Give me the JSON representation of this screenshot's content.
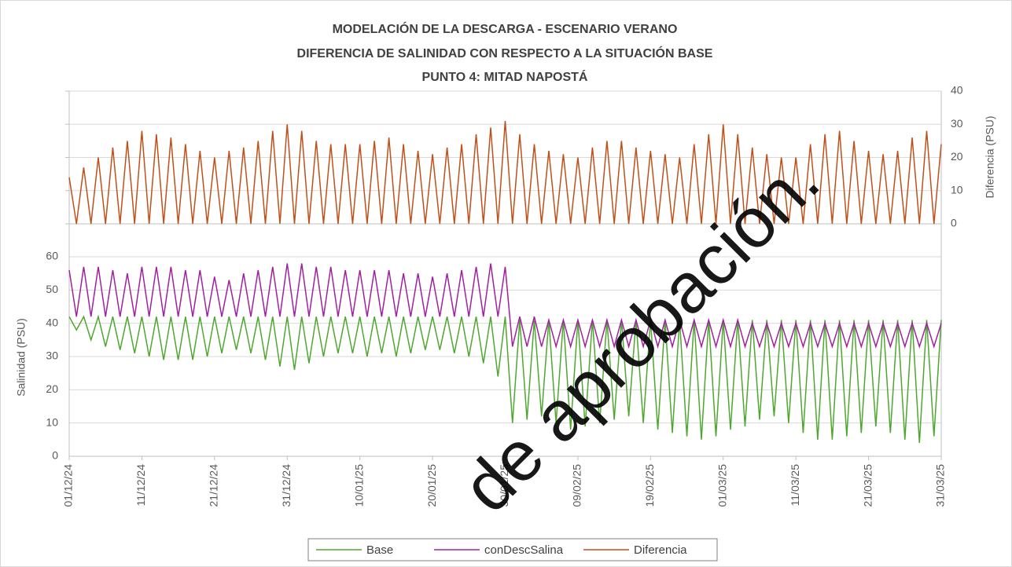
{
  "chart_data": {
    "type": "line",
    "title": [
      "MODELACIÓN DE LA DESCARGA - ESCENARIO VERANO",
      "DIFERENCIA DE SALINIDAD CON RESPECTO A LA SITUACIÓN BASE",
      "PUNTO 4: MITAD NAPOSTÁ"
    ],
    "ylabel": "Salinidad (PSU)",
    "y2label": "Diferencia (PSU)",
    "watermark": "de aprobación.",
    "x": [
      0,
      1,
      2,
      3,
      4,
      5,
      6,
      7,
      8,
      9,
      10,
      11,
      12,
      13,
      14,
      15,
      16,
      17,
      18,
      19,
      20,
      21,
      22,
      23,
      24,
      25,
      26,
      27,
      28,
      29,
      30,
      31,
      32,
      33,
      34,
      35,
      36,
      37,
      38,
      39,
      40,
      41,
      42,
      43,
      44,
      45,
      46,
      47,
      48,
      49,
      50,
      51,
      52,
      53,
      54,
      55,
      56,
      57,
      58,
      59,
      60,
      61,
      62,
      63,
      64,
      65,
      66,
      67,
      68,
      69,
      70,
      71,
      72,
      73,
      74,
      75,
      76,
      77,
      78,
      79,
      80,
      81,
      82,
      83,
      84,
      85,
      86,
      87,
      88,
      89,
      90,
      91,
      92,
      93,
      94,
      95,
      96,
      97,
      98,
      99,
      100,
      101,
      102,
      103,
      104,
      105,
      106,
      107,
      108,
      109,
      110,
      111,
      112,
      113,
      114,
      115,
      116,
      117,
      118,
      119,
      120
    ],
    "xlim": [
      0,
      120
    ],
    "xticks": [
      {
        "value": 0,
        "label": "01/12/24"
      },
      {
        "value": 10,
        "label": "11/12/24"
      },
      {
        "value": 20,
        "label": "21/12/24"
      },
      {
        "value": 30,
        "label": "31/12/24"
      },
      {
        "value": 40,
        "label": "10/01/25"
      },
      {
        "value": 50,
        "label": "20/01/25"
      },
      {
        "value": 60,
        "label": "30/01/25"
      },
      {
        "value": 70,
        "label": "09/02/25"
      },
      {
        "value": 80,
        "label": "19/02/25"
      },
      {
        "value": 90,
        "label": "01/03/25"
      },
      {
        "value": 100,
        "label": "11/03/25"
      },
      {
        "value": 110,
        "label": "21/03/25"
      },
      {
        "value": 120,
        "label": "31/03/25"
      }
    ],
    "ylim": [
      0,
      60
    ],
    "yticks": [
      0,
      10,
      20,
      30,
      40,
      50,
      60
    ],
    "y2lim": [
      0,
      40
    ],
    "y2ticks": [
      0,
      10,
      20,
      30,
      40
    ],
    "grid": true,
    "legend": "bottom",
    "series": [
      {
        "name": "Base",
        "color": "#4ea72e",
        "values": [
          42,
          38,
          42,
          35,
          42,
          33,
          42,
          32,
          42,
          31,
          42,
          30,
          42,
          29,
          42,
          29,
          42,
          29,
          42,
          30,
          42,
          31,
          42,
          32,
          42,
          31,
          42,
          29,
          42,
          27,
          42,
          26,
          42,
          28,
          42,
          30,
          42,
          31,
          42,
          31,
          42,
          30,
          42,
          31,
          42,
          30,
          42,
          31,
          42,
          32,
          42,
          32,
          42,
          31,
          42,
          30,
          42,
          28,
          42,
          24,
          42,
          10,
          41,
          11,
          41,
          12,
          41,
          10,
          41,
          8,
          41,
          9,
          41,
          10,
          41,
          11,
          41,
          12,
          41,
          10,
          41,
          8,
          41,
          7,
          41,
          6,
          41,
          5,
          41,
          6,
          41,
          8,
          41,
          9,
          41,
          11,
          41,
          12,
          41,
          10,
          41,
          7,
          41,
          5,
          41,
          5,
          41,
          6,
          41,
          7,
          41,
          9,
          41,
          7,
          41,
          5,
          41,
          4,
          41,
          6,
          41
        ]
      },
      {
        "name": "conDescSalina",
        "color": "#a020a0",
        "values": [
          56,
          42,
          57,
          42,
          57,
          42,
          56,
          42,
          55,
          42,
          57,
          42,
          57,
          42,
          57,
          42,
          56,
          42,
          56,
          42,
          54,
          42,
          53,
          42,
          55,
          42,
          56,
          42,
          57,
          42,
          58,
          42,
          58,
          42,
          57,
          42,
          57,
          42,
          56,
          42,
          56,
          42,
          56,
          42,
          56,
          42,
          55,
          42,
          55,
          42,
          54,
          42,
          55,
          42,
          56,
          42,
          57,
          42,
          58,
          42,
          57,
          33,
          42,
          33,
          42,
          33,
          41,
          33,
          41,
          33,
          41,
          33,
          41,
          33,
          41,
          33,
          41,
          33,
          41,
          33,
          41,
          33,
          41,
          33,
          41,
          33,
          41,
          33,
          41,
          33,
          41,
          33,
          41,
          33,
          40,
          33,
          40,
          33,
          40,
          33,
          40,
          33,
          40,
          33,
          40,
          33,
          40,
          33,
          40,
          33,
          40,
          33,
          40,
          33,
          40,
          33,
          40,
          33,
          40,
          33,
          40
        ]
      },
      {
        "name": "Diferencia",
        "color": "#c0501a",
        "axis": "y2",
        "values": [
          14,
          0,
          17,
          0,
          20,
          0,
          23,
          0,
          25,
          0,
          28,
          0,
          27,
          0,
          26,
          0,
          24,
          0,
          22,
          0,
          20,
          0,
          22,
          0,
          23,
          0,
          25,
          0,
          28,
          0,
          30,
          0,
          28,
          0,
          25,
          0,
          24,
          0,
          24,
          0,
          24,
          0,
          25,
          0,
          26,
          0,
          24,
          0,
          22,
          0,
          21,
          0,
          23,
          0,
          24,
          0,
          27,
          0,
          29,
          0,
          31,
          0,
          27,
          0,
          24,
          0,
          22,
          0,
          21,
          0,
          20,
          0,
          23,
          0,
          25,
          0,
          25,
          0,
          23,
          0,
          22,
          0,
          21,
          0,
          20,
          0,
          24,
          0,
          27,
          0,
          30,
          0,
          27,
          0,
          23,
          0,
          21,
          0,
          20,
          0,
          20,
          0,
          24,
          0,
          27,
          0,
          28,
          0,
          25,
          0,
          22,
          0,
          21,
          0,
          22,
          0,
          26,
          0,
          28,
          0,
          24
        ]
      }
    ]
  }
}
